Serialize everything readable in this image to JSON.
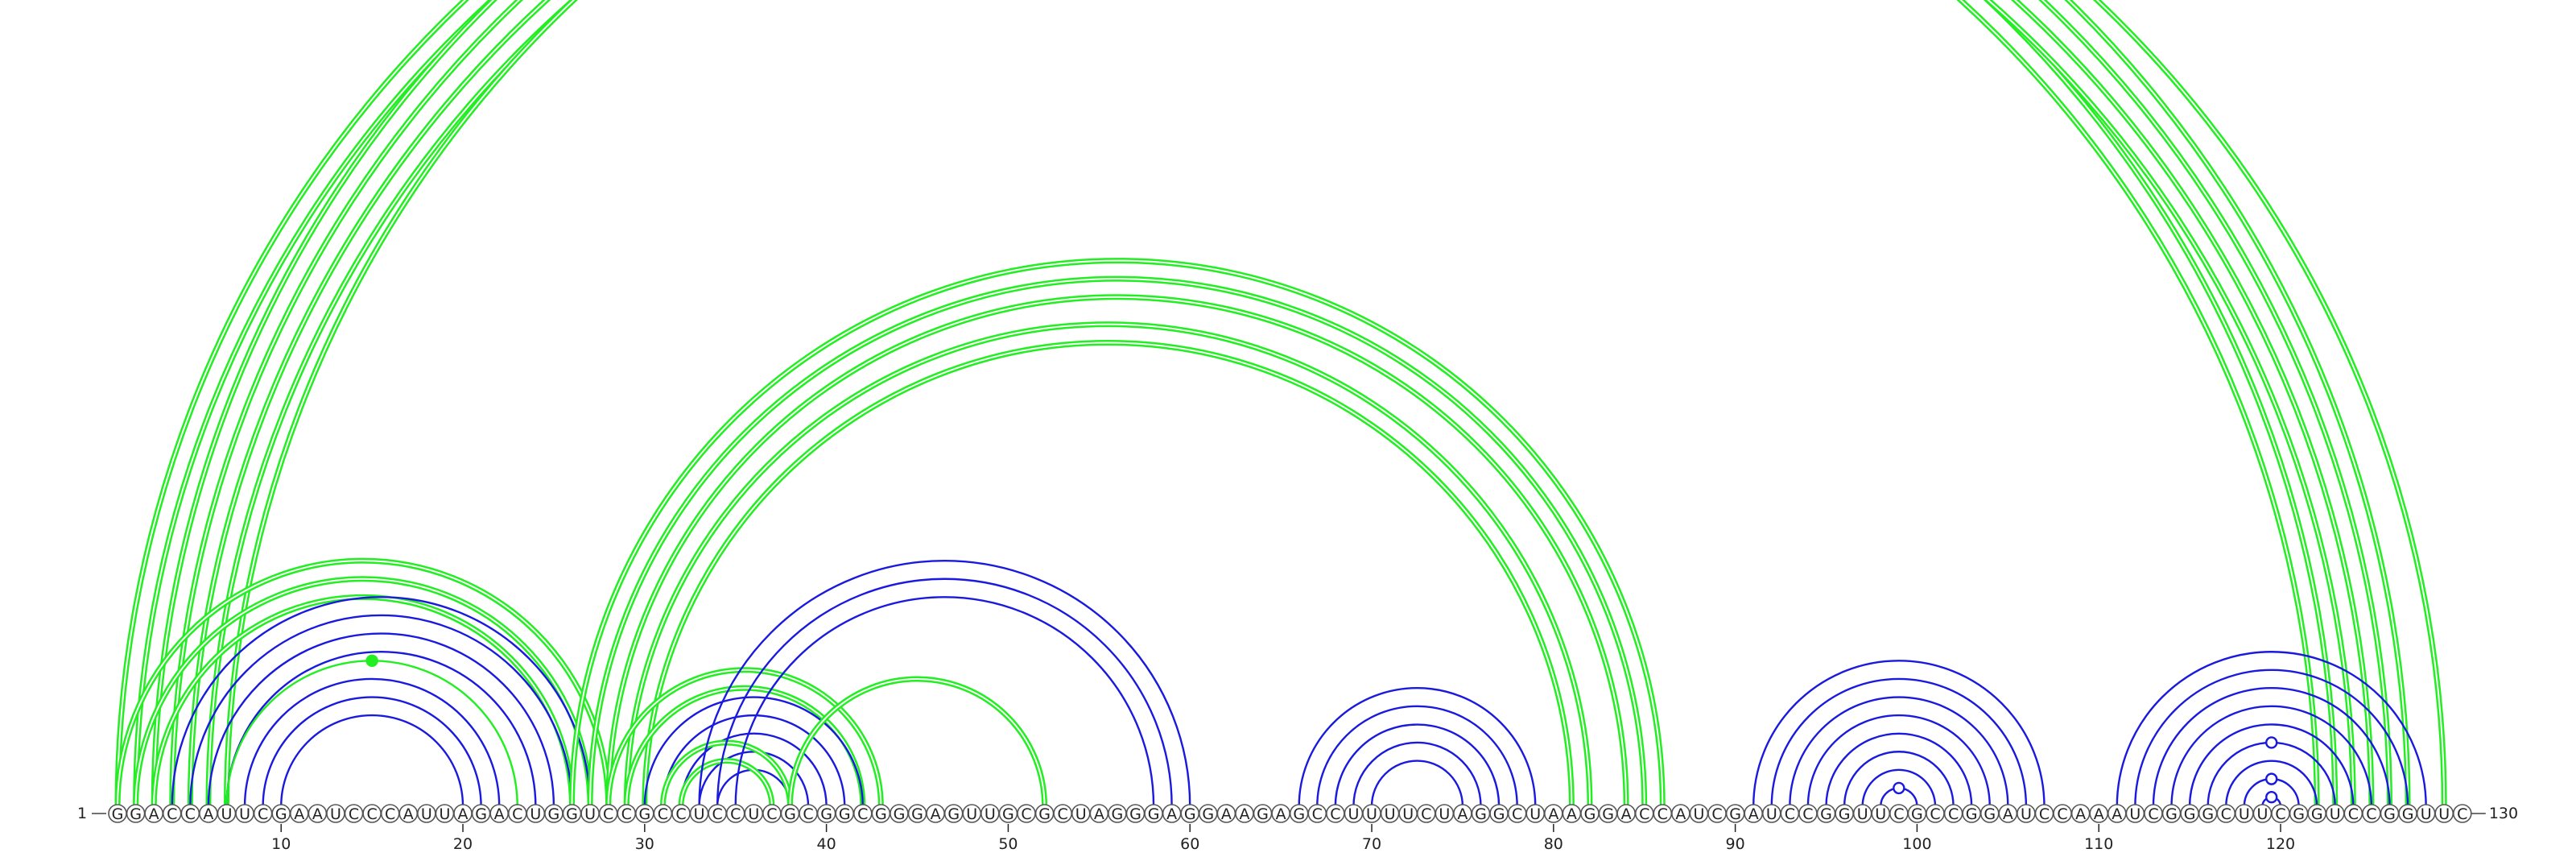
{
  "sequence": "GGACCAUUCGAAUCCCAUUAGACUGGUCCGCCUCCUCGCGGCGGGAGUUGCGCUAGGGAGGAAGAGCCUUUUCUAGGCUAAGGACCAUCGAUCCGGUUCGCCGGAUCCAAAUCGGGCUUCGGUCCGGUUC",
  "start_label": "1",
  "end_label": "130",
  "ticks": [
    10,
    20,
    30,
    40,
    50,
    60,
    70,
    80,
    90,
    100,
    110,
    120
  ],
  "colors": {
    "green": "#22ee22",
    "blue": "#1a1adf"
  },
  "chart_data": {
    "type": "arc-diagram",
    "length": 130,
    "helices": [
      {
        "color": "green",
        "double": true,
        "pairs": [
          [
            1,
            123
          ],
          [
            2,
            122
          ]
        ]
      },
      {
        "color": "green",
        "double": true,
        "pairs": [
          [
            3,
            127
          ],
          [
            4,
            126
          ],
          [
            5,
            125
          ],
          [
            6,
            124
          ]
        ]
      },
      {
        "color": "green",
        "double": true,
        "pairs": [
          [
            7,
            129
          ]
        ]
      },
      {
        "color": "green",
        "double": true,
        "pairs": [
          [
            1,
            28
          ],
          [
            2,
            27
          ],
          [
            3,
            26
          ]
        ]
      },
      {
        "color": "blue",
        "double": false,
        "pairs": [
          [
            4,
            27
          ],
          [
            5,
            26
          ],
          [
            6,
            25
          ],
          [
            7,
            24
          ]
        ]
      },
      {
        "color": "blue",
        "double": false,
        "pairs": [
          [
            8,
            22
          ],
          [
            9,
            21
          ],
          [
            10,
            20
          ]
        ]
      },
      {
        "color": "green",
        "double": false,
        "pairs": [
          [
            7,
            23
          ]
        ]
      },
      {
        "color": "green",
        "double": true,
        "pairs": [
          [
            26,
            86
          ],
          [
            27,
            85
          ],
          [
            28,
            84
          ]
        ]
      },
      {
        "color": "green",
        "double": true,
        "pairs": [
          [
            29,
            82
          ],
          [
            30,
            81
          ]
        ]
      },
      {
        "color": "green",
        "double": true,
        "pairs": [
          [
            28,
            43
          ],
          [
            29,
            42
          ]
        ]
      },
      {
        "color": "blue",
        "double": false,
        "pairs": [
          [
            30,
            42
          ],
          [
            31,
            41
          ],
          [
            32,
            40
          ],
          [
            33,
            39
          ],
          [
            34,
            38
          ]
        ]
      },
      {
        "color": "green",
        "double": true,
        "pairs": [
          [
            31,
            38
          ],
          [
            32,
            37
          ]
        ]
      },
      {
        "color": "blue",
        "double": false,
        "pairs": [
          [
            33,
            60
          ],
          [
            34,
            59
          ],
          [
            35,
            58
          ]
        ]
      },
      {
        "color": "green",
        "double": true,
        "pairs": [
          [
            38,
            52
          ]
        ]
      },
      {
        "color": "blue",
        "double": false,
        "pairs": [
          [
            66,
            79
          ],
          [
            67,
            78
          ],
          [
            68,
            77
          ],
          [
            69,
            76
          ],
          [
            70,
            75
          ]
        ]
      },
      {
        "color": "blue",
        "double": false,
        "pairs": [
          [
            91,
            107
          ],
          [
            92,
            106
          ],
          [
            93,
            105
          ],
          [
            94,
            104
          ],
          [
            95,
            103
          ],
          [
            96,
            102
          ],
          [
            97,
            101
          ],
          [
            98,
            100
          ]
        ]
      },
      {
        "color": "blue",
        "double": false,
        "pairs": [
          [
            111,
            128
          ],
          [
            112,
            127
          ],
          [
            113,
            126
          ],
          [
            114,
            125
          ],
          [
            115,
            124
          ],
          [
            116,
            123
          ],
          [
            117,
            122
          ],
          [
            118,
            121
          ]
        ]
      },
      {
        "color": "blue",
        "double": false,
        "pairs": [
          [
            119,
            120
          ]
        ]
      }
    ],
    "markers": [
      {
        "pair": [
          7,
          129
        ],
        "color": "green",
        "filled": false
      },
      {
        "pair": [
          7,
          23
        ],
        "color": "green",
        "filled": true
      },
      {
        "pair": [
          98,
          100
        ],
        "color": "blue",
        "filled": false
      },
      {
        "pair": [
          116,
          123
        ],
        "color": "blue",
        "filled": false
      },
      {
        "pair": [
          118,
          121
        ],
        "color": "blue",
        "filled": false
      },
      {
        "pair": [
          119,
          120
        ],
        "color": "blue",
        "filled": false
      }
    ]
  }
}
